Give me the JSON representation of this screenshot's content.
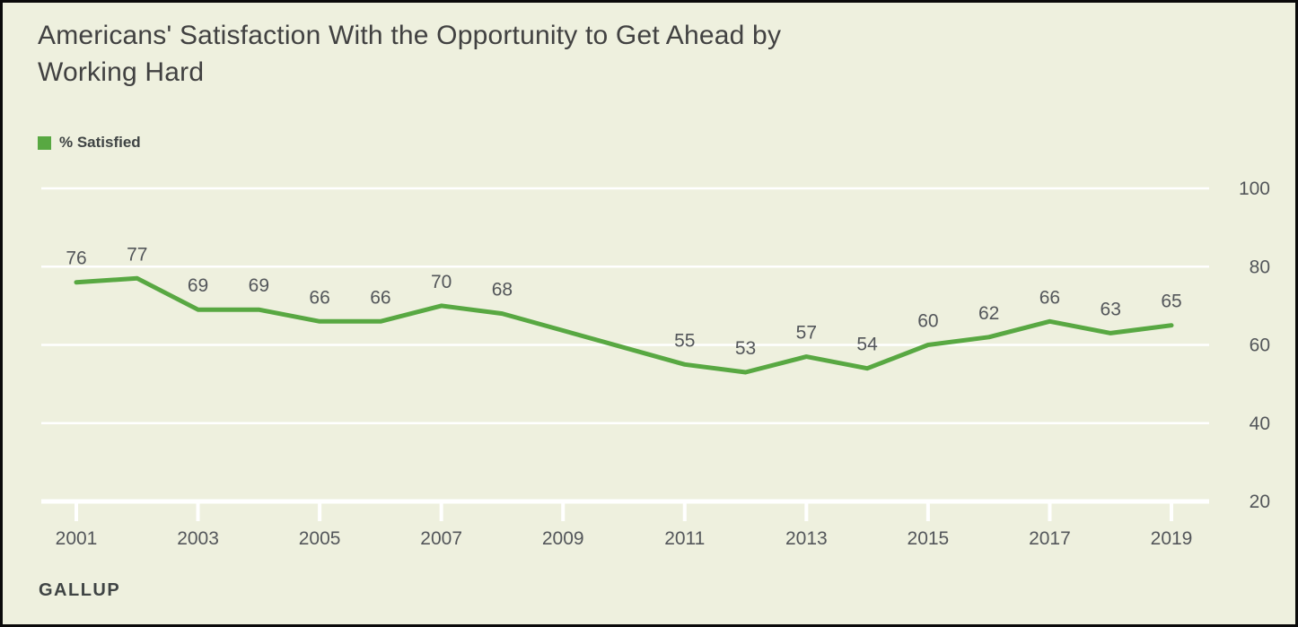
{
  "title_lines": [
    "Americans' Satisfaction With the Opportunity to Get Ahead by",
    "Working Hard"
  ],
  "legend": {
    "label": "% Satisfied"
  },
  "source": "GALLUP",
  "colors": {
    "background": "#EEF0DE",
    "line": "#58A842",
    "grid": "#FFFFFF",
    "axis_text": "#53565A",
    "title_text": "#414141"
  },
  "chart_data": {
    "type": "line",
    "title": "Americans' Satisfaction With the Opportunity to Get Ahead by Working Hard",
    "series": [
      {
        "name": "% Satisfied",
        "points": [
          {
            "year": 2001,
            "value": 76
          },
          {
            "year": 2002,
            "value": 77
          },
          {
            "year": 2003,
            "value": 69
          },
          {
            "year": 2004,
            "value": 69
          },
          {
            "year": 2005,
            "value": 66
          },
          {
            "year": 2006,
            "value": 66
          },
          {
            "year": 2007,
            "value": 70
          },
          {
            "year": 2008,
            "value": 68
          },
          {
            "year": 2011,
            "value": 55
          },
          {
            "year": 2012,
            "value": 53
          },
          {
            "year": 2013,
            "value": 57
          },
          {
            "year": 2014,
            "value": 54
          },
          {
            "year": 2015,
            "value": 60
          },
          {
            "year": 2016,
            "value": 62
          },
          {
            "year": 2017,
            "value": 66
          },
          {
            "year": 2018,
            "value": 63
          },
          {
            "year": 2019,
            "value": 65
          }
        ]
      }
    ],
    "data_gap_years": [
      2009,
      2010
    ],
    "x_axis": {
      "range": [
        2001,
        2019
      ],
      "ticks": [
        2001,
        2003,
        2005,
        2007,
        2009,
        2011,
        2013,
        2015,
        2017,
        2019
      ]
    },
    "y_axis": {
      "range": [
        20,
        100
      ],
      "ticks": [
        20,
        40,
        60,
        80,
        100
      ],
      "side": "right"
    },
    "grid": true,
    "legend_position": "top-left",
    "data_labels": true
  }
}
